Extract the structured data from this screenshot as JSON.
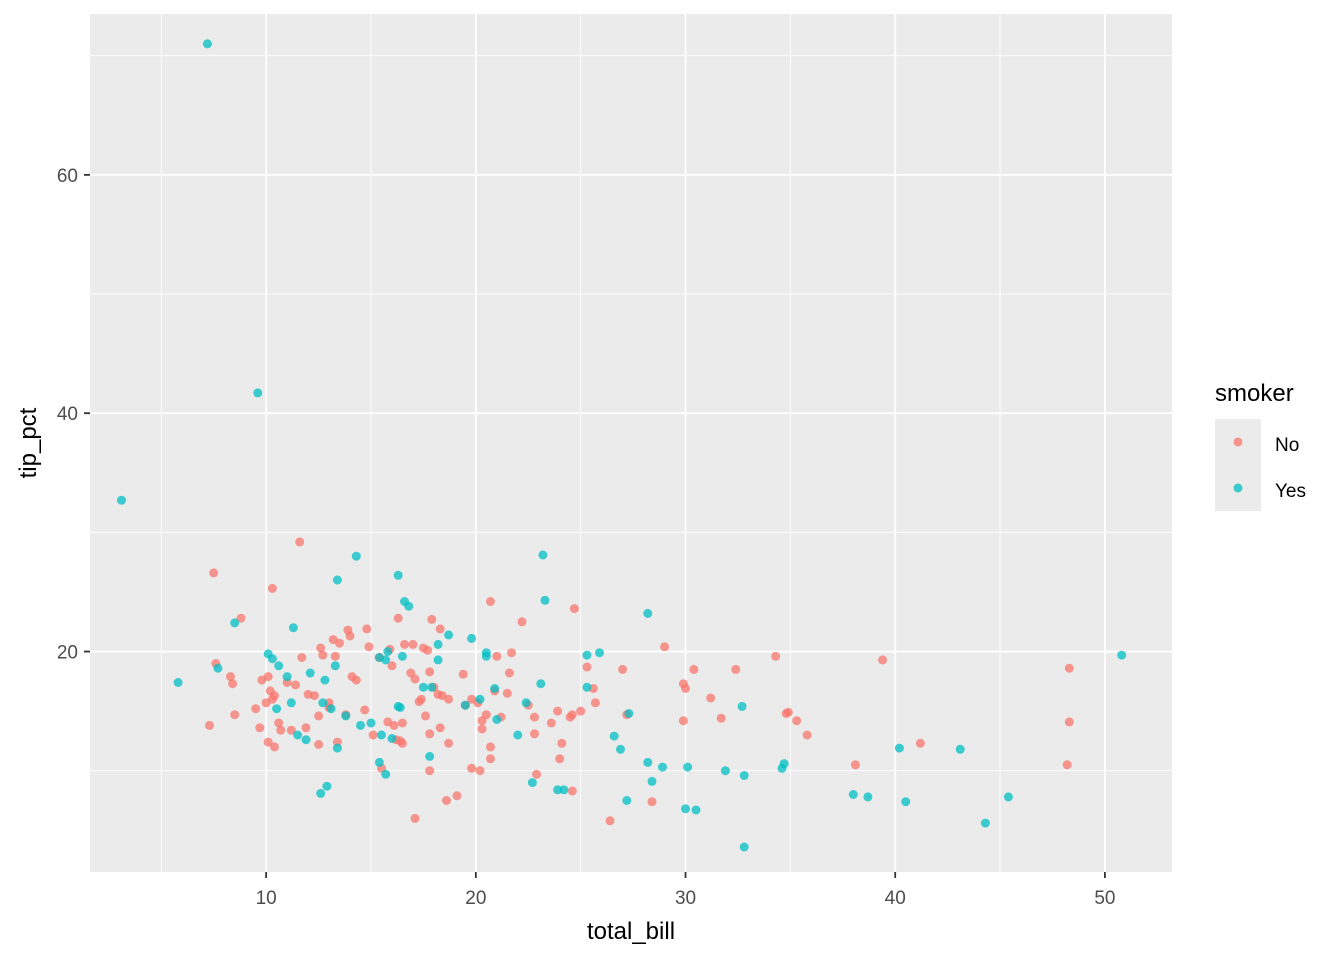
{
  "chart_data": {
    "type": "scatter",
    "xlabel": "total_bill",
    "ylabel": "tip_pct",
    "xlim": [
      1.6,
      53.2
    ],
    "ylim": [
      1.5,
      73.5
    ],
    "x_ticks": [
      10,
      20,
      30,
      40,
      50
    ],
    "y_ticks": [
      20,
      40,
      60
    ],
    "grid": true,
    "legend": {
      "title": "smoker",
      "position": "right"
    },
    "series": [
      {
        "name": "No",
        "color": "#F8766D",
        "points": [
          [
            7.3,
            13.8
          ],
          [
            7.5,
            26.6
          ],
          [
            7.6,
            19.0
          ],
          [
            8.3,
            17.9
          ],
          [
            8.4,
            17.3
          ],
          [
            8.5,
            14.7
          ],
          [
            8.8,
            22.8
          ],
          [
            9.5,
            15.2
          ],
          [
            9.7,
            13.6
          ],
          [
            9.8,
            17.6
          ],
          [
            10.0,
            15.7
          ],
          [
            10.1,
            12.4
          ],
          [
            10.1,
            17.9
          ],
          [
            10.2,
            16.7
          ],
          [
            10.3,
            16.0
          ],
          [
            10.3,
            25.3
          ],
          [
            10.4,
            16.3
          ],
          [
            10.4,
            12.0
          ],
          [
            10.6,
            14.0
          ],
          [
            10.7,
            13.4
          ],
          [
            11.0,
            17.4
          ],
          [
            11.2,
            13.4
          ],
          [
            11.4,
            17.2
          ],
          [
            11.6,
            29.2
          ],
          [
            11.7,
            19.5
          ],
          [
            11.9,
            13.6
          ],
          [
            12.0,
            16.4
          ],
          [
            12.3,
            16.3
          ],
          [
            12.5,
            14.6
          ],
          [
            12.5,
            12.2
          ],
          [
            12.6,
            20.3
          ],
          [
            12.7,
            19.7
          ],
          [
            13.0,
            15.3
          ],
          [
            13.0,
            15.7
          ],
          [
            13.2,
            21.0
          ],
          [
            13.3,
            19.6
          ],
          [
            13.4,
            12.4
          ],
          [
            13.5,
            20.7
          ],
          [
            13.8,
            14.7
          ],
          [
            13.9,
            21.8
          ],
          [
            14.0,
            21.3
          ],
          [
            14.1,
            17.9
          ],
          [
            14.3,
            17.6
          ],
          [
            14.7,
            15.1
          ],
          [
            14.8,
            21.9
          ],
          [
            14.9,
            20.4
          ],
          [
            15.1,
            13.0
          ],
          [
            15.4,
            19.5
          ],
          [
            15.5,
            10.2
          ],
          [
            15.8,
            14.1
          ],
          [
            15.9,
            20.2
          ],
          [
            16.0,
            18.8
          ],
          [
            16.1,
            13.8
          ],
          [
            16.2,
            12.6
          ],
          [
            16.3,
            22.8
          ],
          [
            16.4,
            12.5
          ],
          [
            16.5,
            14.0
          ],
          [
            16.5,
            12.3
          ],
          [
            16.6,
            20.6
          ],
          [
            16.9,
            18.2
          ],
          [
            17.0,
            20.6
          ],
          [
            17.1,
            17.7
          ],
          [
            17.1,
            6.0
          ],
          [
            17.3,
            15.8
          ],
          [
            17.4,
            16.0
          ],
          [
            17.5,
            20.3
          ],
          [
            17.6,
            14.6
          ],
          [
            17.7,
            20.1
          ],
          [
            17.8,
            18.3
          ],
          [
            17.8,
            13.1
          ],
          [
            17.8,
            10.0
          ],
          [
            17.9,
            22.7
          ],
          [
            18.0,
            17.0
          ],
          [
            18.2,
            16.4
          ],
          [
            18.3,
            21.9
          ],
          [
            18.3,
            13.6
          ],
          [
            18.4,
            16.3
          ],
          [
            18.6,
            7.5
          ],
          [
            18.7,
            12.3
          ],
          [
            18.7,
            16.0
          ],
          [
            19.1,
            7.9
          ],
          [
            19.4,
            18.1
          ],
          [
            19.5,
            15.5
          ],
          [
            19.8,
            10.2
          ],
          [
            19.8,
            16.0
          ],
          [
            20.1,
            15.7
          ],
          [
            20.2,
            10.0
          ],
          [
            20.3,
            14.2
          ],
          [
            20.3,
            13.5
          ],
          [
            20.5,
            14.7
          ],
          [
            20.7,
            24.2
          ],
          [
            20.7,
            12.0
          ],
          [
            20.7,
            11.0
          ],
          [
            20.9,
            16.7
          ],
          [
            21.0,
            19.6
          ],
          [
            21.2,
            14.5
          ],
          [
            21.5,
            16.5
          ],
          [
            21.6,
            18.2
          ],
          [
            21.7,
            19.9
          ],
          [
            22.2,
            22.5
          ],
          [
            22.5,
            15.5
          ],
          [
            22.8,
            14.5
          ],
          [
            22.8,
            13.1
          ],
          [
            22.9,
            9.7
          ],
          [
            23.6,
            14.0
          ],
          [
            23.9,
            15.0
          ],
          [
            24.0,
            11.0
          ],
          [
            24.1,
            12.3
          ],
          [
            24.5,
            14.5
          ],
          [
            24.6,
            8.3
          ],
          [
            24.6,
            14.7
          ],
          [
            24.7,
            23.6
          ],
          [
            25.0,
            15.0
          ],
          [
            25.3,
            18.7
          ],
          [
            25.6,
            16.9
          ],
          [
            25.7,
            15.7
          ],
          [
            26.4,
            5.8
          ],
          [
            27.0,
            18.5
          ],
          [
            27.2,
            14.7
          ],
          [
            28.4,
            7.4
          ],
          [
            29.0,
            20.4
          ],
          [
            29.9,
            14.2
          ],
          [
            29.9,
            17.3
          ],
          [
            30.0,
            16.9
          ],
          [
            30.4,
            18.5
          ],
          [
            31.2,
            16.1
          ],
          [
            31.7,
            14.4
          ],
          [
            32.4,
            18.5
          ],
          [
            34.3,
            19.6
          ],
          [
            34.8,
            14.8
          ],
          [
            34.9,
            14.9
          ],
          [
            35.3,
            14.2
          ],
          [
            35.8,
            13.0
          ],
          [
            38.1,
            10.5
          ],
          [
            39.4,
            19.3
          ],
          [
            41.2,
            12.3
          ],
          [
            48.2,
            10.5
          ],
          [
            48.3,
            14.1
          ],
          [
            48.3,
            18.6
          ]
        ]
      },
      {
        "name": "Yes",
        "color": "#00BFC4",
        "points": [
          [
            3.1,
            32.7
          ],
          [
            5.8,
            17.4
          ],
          [
            7.2,
            71.0
          ],
          [
            7.7,
            18.6
          ],
          [
            8.5,
            22.4
          ],
          [
            9.6,
            41.7
          ],
          [
            10.1,
            19.8
          ],
          [
            10.3,
            19.4
          ],
          [
            10.5,
            15.2
          ],
          [
            10.6,
            18.8
          ],
          [
            11.0,
            17.9
          ],
          [
            11.2,
            15.7
          ],
          [
            11.3,
            22.0
          ],
          [
            11.5,
            13.0
          ],
          [
            11.9,
            12.6
          ],
          [
            12.1,
            18.2
          ],
          [
            12.6,
            8.1
          ],
          [
            12.7,
            15.7
          ],
          [
            12.8,
            17.6
          ],
          [
            12.9,
            8.7
          ],
          [
            13.1,
            15.2
          ],
          [
            13.3,
            18.8
          ],
          [
            13.4,
            26.0
          ],
          [
            13.4,
            11.9
          ],
          [
            13.8,
            14.6
          ],
          [
            14.3,
            28.0
          ],
          [
            14.5,
            13.8
          ],
          [
            15.0,
            14.0
          ],
          [
            15.4,
            10.7
          ],
          [
            15.4,
            19.5
          ],
          [
            15.5,
            13.0
          ],
          [
            15.7,
            19.3
          ],
          [
            15.7,
            9.7
          ],
          [
            15.8,
            20.0
          ],
          [
            16.0,
            12.7
          ],
          [
            16.3,
            15.4
          ],
          [
            16.3,
            26.4
          ],
          [
            16.4,
            15.3
          ],
          [
            16.5,
            19.6
          ],
          [
            16.6,
            24.2
          ],
          [
            16.8,
            23.8
          ],
          [
            17.5,
            17.0
          ],
          [
            17.8,
            11.2
          ],
          [
            17.9,
            17.0
          ],
          [
            18.2,
            19.3
          ],
          [
            18.2,
            20.6
          ],
          [
            18.7,
            21.4
          ],
          [
            19.5,
            15.5
          ],
          [
            19.8,
            21.1
          ],
          [
            20.2,
            16.0
          ],
          [
            20.5,
            19.9
          ],
          [
            20.5,
            19.6
          ],
          [
            20.9,
            16.9
          ],
          [
            21.0,
            14.3
          ],
          [
            22.0,
            13.0
          ],
          [
            22.4,
            15.7
          ],
          [
            22.7,
            9.0
          ],
          [
            23.1,
            17.3
          ],
          [
            23.2,
            28.1
          ],
          [
            23.3,
            24.3
          ],
          [
            23.9,
            8.4
          ],
          [
            24.2,
            8.4
          ],
          [
            25.3,
            19.7
          ],
          [
            25.3,
            17.0
          ],
          [
            25.9,
            19.9
          ],
          [
            26.6,
            12.9
          ],
          [
            26.9,
            11.8
          ],
          [
            27.2,
            7.5
          ],
          [
            27.3,
            14.8
          ],
          [
            28.2,
            23.2
          ],
          [
            28.2,
            10.7
          ],
          [
            28.4,
            9.1
          ],
          [
            28.9,
            10.3
          ],
          [
            30.0,
            6.8
          ],
          [
            30.1,
            10.3
          ],
          [
            30.5,
            6.7
          ],
          [
            31.9,
            10.0
          ],
          [
            32.7,
            15.4
          ],
          [
            32.8,
            9.6
          ],
          [
            32.8,
            3.6
          ],
          [
            34.6,
            10.2
          ],
          [
            34.7,
            10.6
          ],
          [
            38.0,
            8.0
          ],
          [
            38.7,
            7.8
          ],
          [
            40.2,
            11.9
          ],
          [
            40.5,
            7.4
          ],
          [
            43.1,
            11.8
          ],
          [
            44.3,
            5.6
          ],
          [
            45.4,
            7.8
          ],
          [
            50.8,
            19.7
          ]
        ]
      }
    ]
  }
}
